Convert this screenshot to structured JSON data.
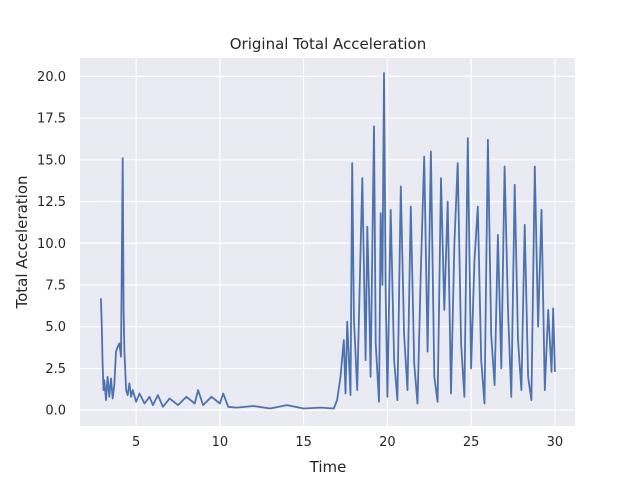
{
  "chart_data": {
    "type": "line",
    "title": "Original Total Acceleration",
    "xlabel": "Time",
    "ylabel": "Total Acceleration",
    "xlim": [
      1.65,
      31.2
    ],
    "ylim": [
      -0.95,
      21.1
    ],
    "xticks": [
      "5",
      "10",
      "15",
      "20",
      "25",
      "30"
    ],
    "yticks": [
      "0.0",
      "2.5",
      "5.0",
      "7.5",
      "10.0",
      "12.5",
      "15.0",
      "17.5",
      "20.0"
    ],
    "grid": true,
    "legend": "none",
    "background_color": "#eaeaf2",
    "grid_color": "#ffffff",
    "series": [
      {
        "color": "#4c72b0",
        "x": [
          2.9,
          2.95,
          3.0,
          3.05,
          3.1,
          3.2,
          3.3,
          3.4,
          3.5,
          3.6,
          3.7,
          3.8,
          3.9,
          4.0,
          4.1,
          4.2,
          4.25,
          4.3,
          4.35,
          4.4,
          4.5,
          4.6,
          4.7,
          4.8,
          5.0,
          5.2,
          5.5,
          5.8,
          6.0,
          6.3,
          6.6,
          7.0,
          7.5,
          8.0,
          8.5,
          8.7,
          9.0,
          9.5,
          10.0,
          10.2,
          10.5,
          11.0,
          12.0,
          13.0,
          14.0,
          15.0,
          16.0,
          16.8,
          17.0,
          17.2,
          17.4,
          17.5,
          17.6,
          17.8,
          17.9,
          18.0,
          18.2,
          18.5,
          18.7,
          18.8,
          18.9,
          19.0,
          19.2,
          19.3,
          19.5,
          19.6,
          19.7,
          19.8,
          19.9,
          20.0,
          20.2,
          20.4,
          20.6,
          20.8,
          21.0,
          21.2,
          21.4,
          21.6,
          21.8,
          22.0,
          22.2,
          22.4,
          22.6,
          22.8,
          23.0,
          23.2,
          23.4,
          23.6,
          23.8,
          24.0,
          24.2,
          24.4,
          24.6,
          24.8,
          25.0,
          25.2,
          25.4,
          25.6,
          25.8,
          26.0,
          26.2,
          26.4,
          26.6,
          26.8,
          27.0,
          27.2,
          27.4,
          27.6,
          27.8,
          28.0,
          28.2,
          28.4,
          28.6,
          28.8,
          29.0,
          29.2,
          29.4,
          29.6,
          29.8,
          29.9,
          30.0
        ],
        "y": [
          6.7,
          5.0,
          2.8,
          1.2,
          1.8,
          0.6,
          2.0,
          0.8,
          1.9,
          0.7,
          1.5,
          3.5,
          3.8,
          4.0,
          3.2,
          15.1,
          6.0,
          3.5,
          2.5,
          1.2,
          0.9,
          1.6,
          0.8,
          1.2,
          0.5,
          1.0,
          0.4,
          0.8,
          0.3,
          0.9,
          0.2,
          0.7,
          0.3,
          0.8,
          0.4,
          1.2,
          0.3,
          0.8,
          0.4,
          1.0,
          0.2,
          0.15,
          0.25,
          0.1,
          0.3,
          0.1,
          0.15,
          0.1,
          0.6,
          2.0,
          4.2,
          1.0,
          5.3,
          0.9,
          14.8,
          5.5,
          1.2,
          13.9,
          3.0,
          11.0,
          7.0,
          2.0,
          17.0,
          4.0,
          0.5,
          11.8,
          7.5,
          20.2,
          7.0,
          0.8,
          12.0,
          3.0,
          0.6,
          13.4,
          4.5,
          1.2,
          12.2,
          2.8,
          0.4,
          8.5,
          15.2,
          3.5,
          15.5,
          2.0,
          0.5,
          13.9,
          6.0,
          12.5,
          1.0,
          10.0,
          14.8,
          4.0,
          0.8,
          16.3,
          2.5,
          9.0,
          12.2,
          3.0,
          0.4,
          16.2,
          4.5,
          1.5,
          10.5,
          2.5,
          14.6,
          6.0,
          0.8,
          13.5,
          4.2,
          1.2,
          11.1,
          2.0,
          0.6,
          14.6,
          5.0,
          12.0,
          1.2,
          6.0,
          2.3,
          6.1,
          2.3
        ]
      }
    ]
  }
}
